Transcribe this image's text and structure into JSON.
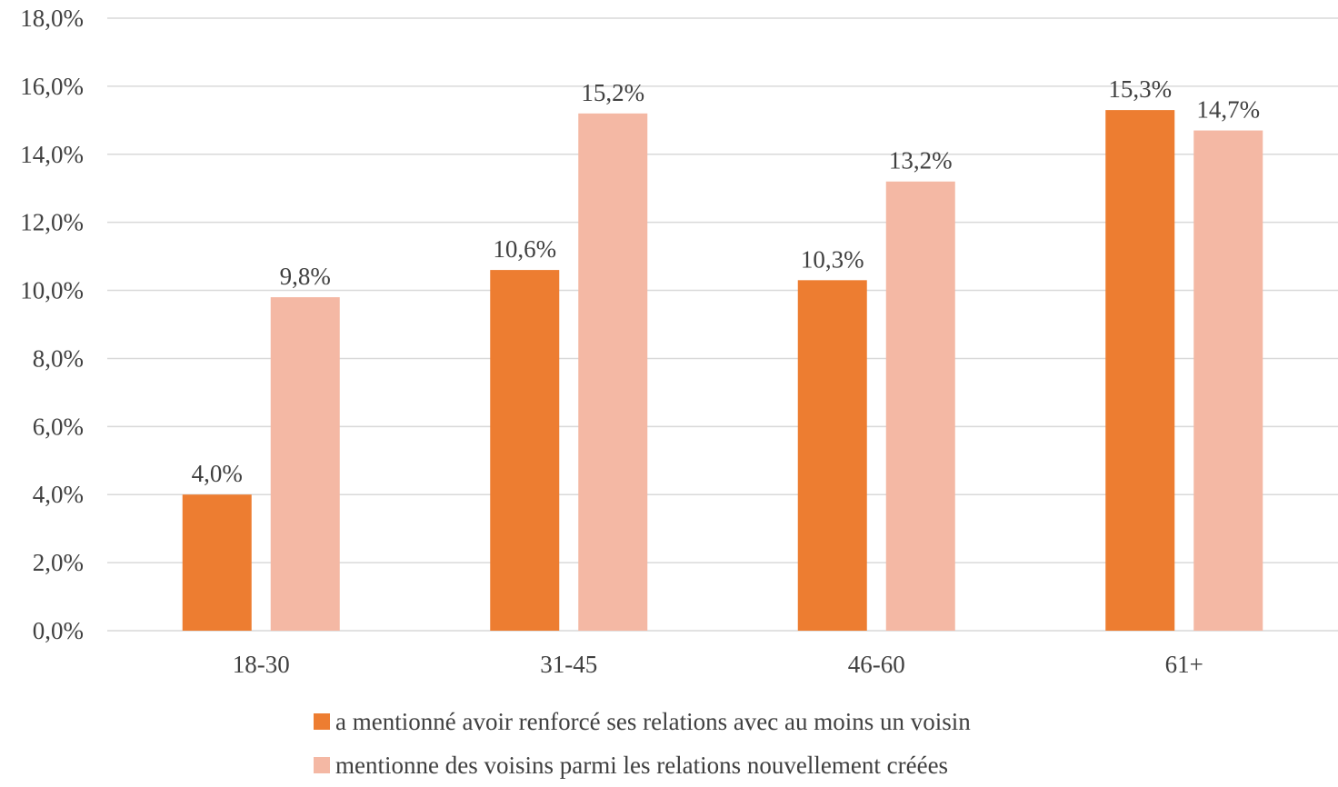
{
  "chart_data": {
    "type": "bar",
    "categories": [
      "18-30",
      "31-45",
      "46-60",
      "61+"
    ],
    "series": [
      {
        "name": "a mentionné avoir renforcé ses relations avec au moins un voisin",
        "color": "#ed7d31",
        "values": [
          4.0,
          10.6,
          10.3,
          15.3
        ],
        "labels": [
          "4,0%",
          "10,6%",
          "10,3%",
          "15,3%"
        ]
      },
      {
        "name": "mentionne des voisins parmi les relations nouvellement créées",
        "color": "#f4b8a4",
        "values": [
          9.8,
          15.2,
          13.2,
          14.7
        ],
        "labels": [
          "9,8%",
          "15,2%",
          "13,2%",
          "14,7%"
        ]
      }
    ],
    "yticks": [
      "0,0%",
      "2,0%",
      "4,0%",
      "6,0%",
      "8,0%",
      "10,0%",
      "12,0%",
      "14,0%",
      "16,0%",
      "18,0%"
    ],
    "ylim": [
      0,
      18
    ],
    "grid": true,
    "legend_position": "bottom",
    "gridline_color": "#d9d9d9"
  }
}
